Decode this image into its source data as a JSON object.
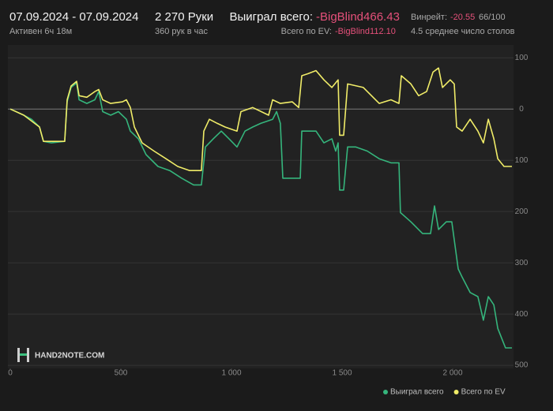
{
  "header": {
    "date_range": "07.09.2024 - 07.09.2024",
    "active": "Активен 6ч 18м",
    "hands": "2 270 Руки",
    "hands_per_hour": "360 рук в час",
    "won_label": "Выиграл всего:",
    "won_value": "-BigBlind466.43",
    "ev_label": "Всего по EV:",
    "ev_value": "-BigBlind112.10",
    "winrate_label": "Винрейт:",
    "winrate_value": "-20.55",
    "winrate_unit": "66/100",
    "tables": "4.5 среднее число столов",
    "logo": "HAND2NOTE.COM"
  },
  "chart_data": {
    "type": "line",
    "xlim": [
      0,
      2275
    ],
    "ylim": [
      -506,
      125
    ],
    "xticks": [
      0,
      500,
      {
        "value": 1000,
        "label": "1 000"
      },
      {
        "value": 1500,
        "label": "1 500"
      },
      {
        "value": 2000,
        "label": "2 000"
      }
    ],
    "yticks": [
      100,
      0,
      {
        "value": -100,
        "label": "100"
      },
      {
        "value": -200,
        "label": "200"
      },
      {
        "value": -300,
        "label": "300"
      },
      {
        "value": -400,
        "label": "400"
      },
      {
        "value": -500,
        "label": "500"
      }
    ],
    "grid": true,
    "series": [
      {
        "name": "Выиграл всего",
        "color": "#35b57c",
        "x": [
          0,
          61,
          96,
          132,
          150,
          186,
          246,
          257,
          275,
          300,
          311,
          346,
          382,
          400,
          418,
          454,
          489,
          525,
          543,
          579,
          614,
          668,
          721,
          775,
          829,
          864,
          882,
          918,
          954,
          989,
          1025,
          1061,
          1096,
          1132,
          1186,
          1204,
          1221,
          1232,
          1311,
          1318,
          1382,
          1418,
          1454,
          1471,
          1482,
          1489,
          1507,
          1525,
          1561,
          1614,
          1668,
          1721,
          1757,
          1764,
          1811,
          1864,
          1900,
          1918,
          1936,
          1971,
          1996,
          2025,
          2043,
          2079,
          2114,
          2139,
          2161,
          2186,
          2204,
          2239,
          2268
        ],
        "values": [
          0,
          -12,
          -20,
          -35,
          -63,
          -66,
          -63,
          14,
          42,
          51,
          18,
          11,
          18,
          34,
          -5,
          -12,
          -5,
          -20,
          -43,
          -58,
          -89,
          -112,
          -120,
          -135,
          -148,
          -148,
          -74,
          -58,
          -43,
          -58,
          -74,
          -43,
          -35,
          -28,
          -20,
          -5,
          -28,
          -135,
          -135,
          -43,
          -43,
          -66,
          -58,
          -82,
          -66,
          -158,
          -158,
          -74,
          -74,
          -82,
          -97,
          -105,
          -105,
          -202,
          -220,
          -243,
          -243,
          -189,
          -235,
          -220,
          -220,
          -312,
          -328,
          -358,
          -366,
          -412,
          -366,
          -382,
          -428,
          -466,
          -466
        ]
      },
      {
        "name": "Всего по EV",
        "color": "#f0ec68",
        "x": [
          0,
          61,
          132,
          150,
          246,
          257,
          275,
          300,
          311,
          346,
          382,
          400,
          418,
          454,
          507,
          525,
          543,
          561,
          596,
          650,
          704,
          757,
          811,
          864,
          875,
          900,
          936,
          971,
          1025,
          1043,
          1096,
          1168,
          1186,
          1221,
          1275,
          1304,
          1318,
          1346,
          1382,
          1418,
          1454,
          1482,
          1489,
          1507,
          1525,
          1596,
          1668,
          1721,
          1757,
          1768,
          1811,
          1846,
          1882,
          1911,
          1936,
          1954,
          1989,
          2007,
          2018,
          2043,
          2079,
          2114,
          2139,
          2161,
          2186,
          2204,
          2232,
          2268
        ],
        "values": [
          0,
          -12,
          -35,
          -63,
          -63,
          18,
          45,
          54,
          26,
          23,
          34,
          38,
          18,
          11,
          14,
          18,
          3,
          -35,
          -66,
          -82,
          -97,
          -112,
          -120,
          -120,
          -43,
          -20,
          -28,
          -35,
          -43,
          -5,
          3,
          -12,
          18,
          11,
          14,
          3,
          65,
          69,
          75,
          57,
          42,
          57,
          -51,
          -51,
          49,
          42,
          11,
          18,
          11,
          65,
          49,
          26,
          34,
          72,
          80,
          42,
          57,
          49,
          -35,
          -43,
          -20,
          -43,
          -66,
          -20,
          -58,
          -97,
          -112,
          -112
        ]
      }
    ]
  }
}
